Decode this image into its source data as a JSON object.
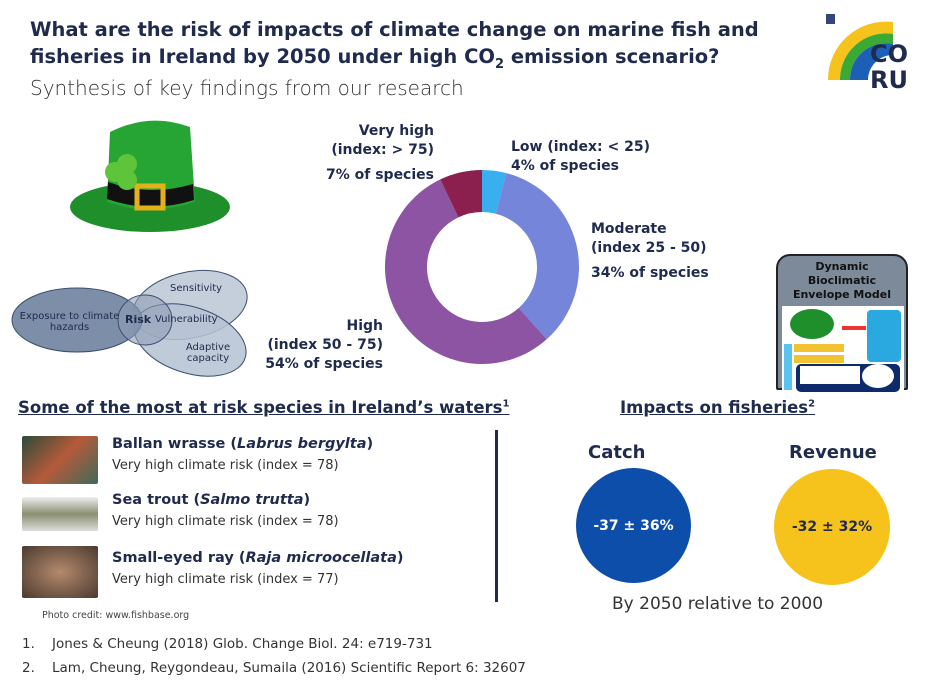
{
  "title_line1": "What are the risk of impacts of climate change on marine fish and",
  "title_line2_pre": "fisheries in Ireland by 2050 under high CO",
  "title_sub": "2",
  "title_line2_post": " emission scenario?",
  "subtitle": "Synthesis of key findings from our research",
  "logo": {
    "text1": "CO",
    "text2": "RU"
  },
  "venn": {
    "exposure": "Exposure to climate hazards",
    "risk": "Risk",
    "sensitivity": "Sensitivity",
    "vulnerability": "Vulnerability",
    "adaptive": "Adaptive capacity"
  },
  "chart_data": {
    "type": "pie",
    "donut": true,
    "categories": [
      "Low (index: < 25)",
      "Moderate (index 25 - 50)",
      "High (index 50 - 75)",
      "Very high (index: > 75)"
    ],
    "values": [
      4,
      34,
      54,
      7
    ],
    "unit": "% of species",
    "colors": [
      "#3aafef",
      "#7585d9",
      "#8c54a3",
      "#8b1f4d"
    ]
  },
  "labels": {
    "very_high_1": "Very high",
    "very_high_2": "(index: > 75)",
    "very_high_pct": "7% of species",
    "low_1": "Low (index: < 25)",
    "low_pct": "4% of species",
    "moderate_1": "Moderate",
    "moderate_2": "(index 25 - 50)",
    "moderate_pct": "34% of species",
    "high_1": "High",
    "high_2": "(index 50 - 75)",
    "high_pct": "54% of species"
  },
  "model": {
    "title": "Dynamic Bioclimatic Envelope Model"
  },
  "species_section": {
    "heading": "Some of the most at risk species in Ireland’s waters",
    "sup": "1",
    "items": [
      {
        "name": "Ballan wrasse",
        "latin": "Labrus bergylta",
        "risk": "Very high climate risk (index = 78)"
      },
      {
        "name": "Sea trout",
        "latin": "Salmo trutta",
        "risk": "Very high climate risk (index = 78)"
      },
      {
        "name": "Small-eyed ray",
        "latin": "Raja microocellata",
        "risk": "Very high climate risk (index = 77)"
      }
    ],
    "credit": "Photo credit: www.fishbase.org"
  },
  "fisheries": {
    "heading": "Impacts on fisheries",
    "sup": "2",
    "catch_label": "Catch",
    "catch_value": "-37 ± 36%",
    "revenue_label": "Revenue",
    "revenue_value": "-32 ± 32%",
    "note": "By 2050 relative to 2000",
    "catch_color": "#0e4eab",
    "revenue_color": "#f6c31c"
  },
  "references": [
    {
      "num": "1.",
      "text": "Jones & Cheung (2018) Glob. Change Biol. 24: e719-731"
    },
    {
      "num": "2.",
      "text": "Lam, Cheung, Reygondeau, Sumaila (2016) Scientific Report 6: 32607"
    }
  ]
}
